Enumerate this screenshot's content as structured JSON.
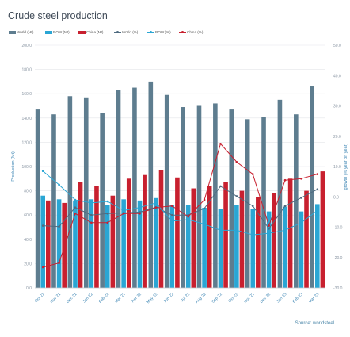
{
  "chart_data": {
    "type": "bar",
    "title": "Crude steel production",
    "ylabel": "Production (Mt)",
    "ylabel2": "growth (% year on year)",
    "ylim": [
      0,
      200
    ],
    "ylim2": [
      -30,
      50
    ],
    "yticks": [
      "0.0",
      "20.0",
      "40.0",
      "60.0",
      "80.0",
      "100.0",
      "120.0",
      "140.0",
      "160.0",
      "180.0",
      "200.0"
    ],
    "yticks2": [
      "-30.0",
      "-20.0",
      "-10.0",
      "0.0",
      "10.0",
      "20.0",
      "30.0",
      "40.0",
      "50.0"
    ],
    "grid": true,
    "legend_position": "top-left",
    "categories": [
      "Oct-21",
      "Nov-21",
      "Dec-21",
      "Jan-22",
      "Feb-22",
      "Mar-22",
      "Apr-22",
      "May-22",
      "Jun-22",
      "Jul-22",
      "Aug-22",
      "Sep-22",
      "Oct-22",
      "Nov-22",
      "Dec-22",
      "Jan-23",
      "Feb-23",
      "Mar-23"
    ],
    "series": [
      {
        "name": "World (Mt)",
        "kind": "bar",
        "axis": "left",
        "color": "#5e7d8f",
        "values": [
          147,
          143,
          158,
          157,
          144,
          163,
          165,
          170,
          159,
          149,
          150,
          152,
          147,
          139,
          141,
          155,
          143,
          166
        ]
      },
      {
        "name": "ROW (Mt)",
        "kind": "bar",
        "axis": "left",
        "color": "#2aa6d4",
        "values": [
          76,
          73,
          72,
          73,
          68,
          73,
          72,
          74,
          68,
          68,
          66,
          65,
          68,
          65,
          63,
          67,
          63,
          69
        ]
      },
      {
        "name": "China (Mt)",
        "kind": "bar",
        "axis": "left",
        "color": "#c8202f",
        "values": [
          72,
          70,
          87,
          84,
          76,
          90,
          93,
          97,
          91,
          82,
          84,
          87,
          80,
          75,
          78,
          90,
          80,
          96
        ]
      },
      {
        "name": "World (%)",
        "kind": "line",
        "axis": "right",
        "color": "#4f6b80",
        "values": [
          -9.5,
          -9.8,
          -3.5,
          -6.0,
          -5.5,
          -5.3,
          -5.0,
          -3.4,
          -6.0,
          -6.0,
          -3.8,
          3.5,
          0.2,
          -3.0,
          -10.5,
          -3.0,
          -0.3,
          2.5
        ]
      },
      {
        "name": "ROW (%)",
        "kind": "line",
        "axis": "right",
        "color": "#2aa6d4",
        "values": [
          8.5,
          4.0,
          -1.0,
          -2.0,
          -1.5,
          -4.5,
          -3.5,
          -2.0,
          -8.0,
          -7.5,
          -9.0,
          -11.0,
          -11.0,
          -12.5,
          -12.0,
          -11.0,
          -8.5,
          -4.5
        ]
      },
      {
        "name": "China (%)",
        "kind": "line",
        "axis": "right",
        "color": "#c8202f",
        "values": [
          -23.2,
          -21.8,
          -5.5,
          -8.5,
          -8.5,
          -5.5,
          -5.5,
          -3.5,
          -3.0,
          -6.5,
          -1.0,
          17.5,
          11.5,
          7.5,
          -9.5,
          5.5,
          6.0,
          7.5
        ]
      }
    ]
  },
  "source_text": "Source: worldsteel"
}
